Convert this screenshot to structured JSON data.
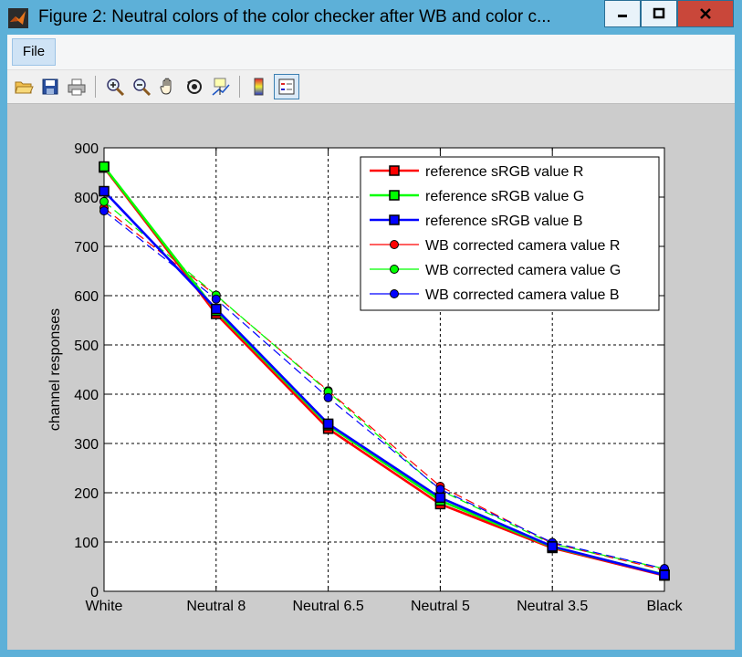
{
  "window": {
    "title": "Figure 2: Neutral colors of the color checker after WB and color c...",
    "controls": {
      "minimize_icon": "minimize-icon",
      "maximize_icon": "maximize-icon",
      "close_icon": "close-icon"
    }
  },
  "menu": {
    "items": [
      {
        "label": "File"
      }
    ]
  },
  "toolbar": {
    "icons": [
      "open-file-icon",
      "save-icon",
      "print-icon",
      "zoom-in-icon",
      "zoom-out-icon",
      "pan-hand-icon",
      "rotate-3d-icon",
      "data-cursor-icon",
      "colorbar-icon",
      "legend-icon"
    ]
  },
  "colors": {
    "title_bar": "#5db0d8",
    "figure_bg": "#cccccc",
    "close_button": "#c9473a"
  },
  "chart_data": {
    "type": "line",
    "title": "",
    "xlabel": "",
    "ylabel": "channel responses",
    "categories": [
      "White",
      "Neutral 8",
      "Neutral 6.5",
      "Neutral 5",
      "Neutral 3.5",
      "Black"
    ],
    "ylim": [
      0,
      900
    ],
    "yticks": [
      "0",
      "100",
      "200",
      "300",
      "400",
      "500",
      "600",
      "700",
      "800",
      "900"
    ],
    "grid": true,
    "legend_position": "top-right",
    "series": [
      {
        "name": "reference sRGB value R",
        "color": "#ff0000",
        "marker": "square",
        "style": "solid",
        "values": [
          860,
          563,
          330,
          177,
          88,
          32
        ]
      },
      {
        "name": "reference sRGB value G",
        "color": "#00ff00",
        "marker": "square",
        "style": "solid",
        "values": [
          862,
          569,
          337,
          184,
          90,
          34
        ]
      },
      {
        "name": "reference sRGB value B",
        "color": "#0000ff",
        "marker": "square",
        "style": "solid",
        "values": [
          812,
          573,
          340,
          190,
          91,
          33
        ]
      },
      {
        "name": "WB corrected camera value R",
        "color": "#ff0000",
        "marker": "circle",
        "style": "dashed",
        "values": [
          778,
          600,
          407,
          213,
          97,
          43
        ]
      },
      {
        "name": "WB corrected camera value G",
        "color": "#00ff00",
        "marker": "circle",
        "style": "dashed",
        "values": [
          791,
          601,
          405,
          205,
          96,
          46
        ]
      },
      {
        "name": "WB corrected camera value B",
        "color": "#0000ff",
        "marker": "circle",
        "style": "dashed",
        "values": [
          772,
          593,
          393,
          207,
          99,
          46
        ]
      }
    ]
  }
}
